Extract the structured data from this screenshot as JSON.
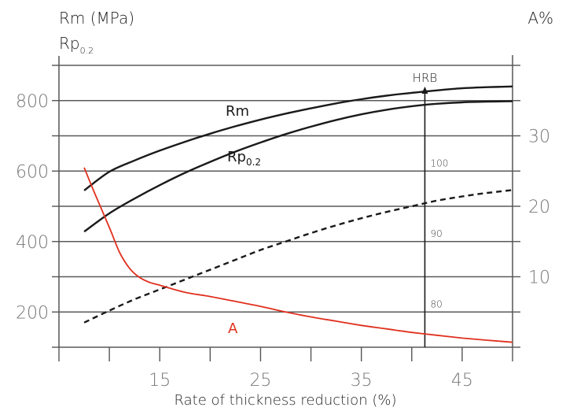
{
  "chart_data": {
    "type": "line",
    "title": "",
    "xlabel": "Rate of thickness reduction (%)",
    "ylabel_left": {
      "main": "Rm (MPa)",
      "second_base": "Rp",
      "second_sub": "0.2"
    },
    "ylabel_right": "A%",
    "x_ticks": [
      "15",
      "25",
      "35",
      "45"
    ],
    "x_tick_values": [
      15,
      25,
      35,
      45
    ],
    "y_left_ticks": [
      "200",
      "400",
      "600",
      "800"
    ],
    "y_left_tick_values": [
      200,
      400,
      600,
      800
    ],
    "y_right_ticks": [
      "10",
      "20",
      "30"
    ],
    "y_right_tick_values": [
      10,
      20,
      30
    ],
    "hrb_axis": {
      "label": "HRB",
      "ticks": [
        "80",
        "90",
        "100"
      ],
      "tick_values": [
        80,
        90,
        100
      ],
      "x": 41.3
    },
    "xlim": [
      5,
      50
    ],
    "ylim_left": [
      100,
      900
    ],
    "ylim_right": [
      0,
      40
    ],
    "grid": true,
    "series": [
      {
        "name": "Rm",
        "label": "Rm",
        "axis": "left",
        "style": "solid",
        "color": "#1a1a1a",
        "x": [
          7.5,
          10,
          12.5,
          15,
          17.5,
          20,
          22.5,
          25,
          27.5,
          30,
          32.5,
          35,
          37.5,
          40,
          42.5,
          45,
          47.5,
          50
        ],
        "y": [
          545,
          598,
          630,
          658,
          683,
          706,
          727,
          746,
          763,
          778,
          792,
          804,
          814,
          822,
          829,
          835,
          838,
          840
        ]
      },
      {
        "name": "Rp0.2",
        "label_base": "Rp",
        "label_sub": "0.2",
        "axis": "left",
        "style": "solid",
        "color": "#1a1a1a",
        "x": [
          7.5,
          10,
          12.5,
          15,
          17.5,
          20,
          22.5,
          25,
          27.5,
          30,
          32.5,
          35,
          37.5,
          40,
          42.5,
          45,
          47.5,
          50
        ],
        "y": [
          428,
          480,
          522,
          560,
          595,
          626,
          655,
          681,
          705,
          726,
          745,
          761,
          774,
          784,
          791,
          795,
          797,
          798
        ]
      },
      {
        "name": "HRB",
        "axis": "hrb",
        "style": "dashed",
        "color": "#1a1a1a",
        "x": [
          7.5,
          10,
          12.5,
          15,
          17.5,
          20,
          22.5,
          25,
          27.5,
          30,
          32.5,
          35,
          37.5,
          40,
          42.5,
          45,
          47.5,
          50
        ],
        "y": [
          78.5,
          80.2,
          81.8,
          83.2,
          84.6,
          86.0,
          87.4,
          88.8,
          90.0,
          91.2,
          92.3,
          93.3,
          94.2,
          95.0,
          95.8,
          96.4,
          96.9,
          97.3
        ]
      },
      {
        "name": "A",
        "label": "A",
        "axis": "right",
        "style": "solid",
        "color": "#e0301e",
        "x": [
          7.5,
          8.5,
          10,
          11,
          12,
          13,
          14,
          15,
          17.5,
          20,
          22.5,
          25,
          27.5,
          30,
          32.5,
          35,
          37.5,
          40,
          42.5,
          45,
          47.5,
          50
        ],
        "y": [
          25.5,
          22,
          17,
          13.5,
          11.2,
          9.9,
          9.2,
          8.8,
          7.8,
          7.2,
          6.5,
          5.8,
          5.0,
          4.3,
          3.7,
          3.1,
          2.6,
          2.1,
          1.7,
          1.3,
          1.0,
          0.7
        ]
      }
    ]
  },
  "colors": {
    "axis": "#555555",
    "grid": "#5a5a5a",
    "curve": "#1a1a1a",
    "accent": "#e0301e",
    "tick_text": "#777777"
  }
}
